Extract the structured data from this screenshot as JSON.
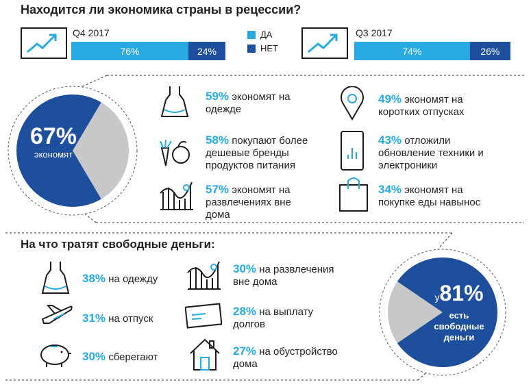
{
  "title": "Находится ли экономика страны в рецессии?",
  "legend": {
    "yes": "ДА",
    "no": "НЕТ"
  },
  "colors": {
    "yes": "#27aae1",
    "no": "#1d4f9c",
    "rest": "#c8c8c8",
    "pct": "#27aae1"
  },
  "chart_data": [
    {
      "type": "bar",
      "categories": [
        "Q4 2017",
        "Q3 2017"
      ],
      "series": [
        {
          "name": "ДА",
          "values": [
            76,
            74
          ]
        },
        {
          "name": "НЕТ",
          "values": [
            24,
            26
          ]
        }
      ]
    },
    {
      "type": "pie",
      "values": [
        67,
        33
      ]
    },
    {
      "type": "pie",
      "values": [
        81,
        19
      ]
    }
  ],
  "bars": {
    "q4": {
      "label": "Q4 2017",
      "yes": "76%",
      "no": "24%",
      "yes_value": 76
    },
    "q3": {
      "label": "Q3 2017",
      "yes": "74%",
      "no": "26%",
      "yes_value": 74
    }
  },
  "pie1": {
    "pct": "67%",
    "label": "экономят",
    "value": 67
  },
  "savings": [
    {
      "pct": "59%",
      "text1": " экономят на",
      "text2": "одежде",
      "text3": ""
    },
    {
      "pct": "58%",
      "text1": " покупают более",
      "text2": "дешевые бренды",
      "text3": "продуктов питания"
    },
    {
      "pct": "57%",
      "text1": " экономят на",
      "text2": "развлечениях вне",
      "text3": "дома"
    },
    {
      "pct": "49%",
      "text1": " экономят на",
      "text2": "коротких отпусках",
      "text3": ""
    },
    {
      "pct": "43%",
      "text1": " отложили",
      "text2": "обновление техники и",
      "text3": "электроники"
    },
    {
      "pct": "34%",
      "text1": " экономят на",
      "text2": "покупке еды навынос",
      "text3": ""
    }
  ],
  "spend_title": "На что тратят свободные деньги:",
  "spending": [
    {
      "pct": "38%",
      "text1": " на одежду",
      "text2": ""
    },
    {
      "pct": "31%",
      "text1": " на отпуск",
      "text2": ""
    },
    {
      "pct": "30%",
      "text1": " сберегают",
      "text2": ""
    },
    {
      "pct": "30%",
      "text1": " на развлечения",
      "text2": "вне дома"
    },
    {
      "pct": "28%",
      "text1": " на выплату",
      "text2": "долгов"
    },
    {
      "pct": "27%",
      "text1": " на обустройство",
      "text2": "дома"
    }
  ],
  "pie2": {
    "prefix": "у",
    "pct": "81%",
    "line1": "есть",
    "line2": "свободные",
    "line3": "деньги",
    "value": 81
  }
}
